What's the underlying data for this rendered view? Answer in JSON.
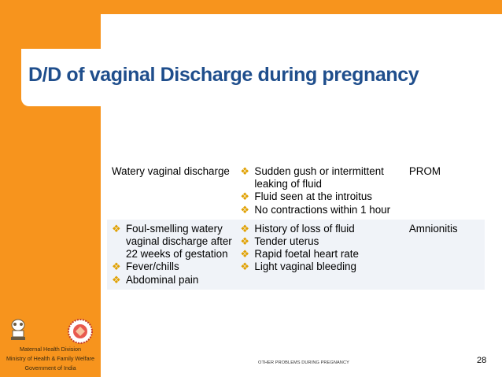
{
  "slide": {
    "title": "D/D of vaginal Discharge during pregnancy",
    "colors": {
      "accent_orange": "#f7941d",
      "title_blue": "#1f4e8c",
      "bullet": "#e0a000",
      "row_alt": "#f0f3f8"
    }
  },
  "table": {
    "rows": [
      {
        "col1_text": "Watery vaginal discharge",
        "col1_bullets": [],
        "col2_bullets": [
          "Sudden gush or intermittent leaking of fluid",
          "Fluid seen at the introitus",
          "No contractions within 1 hour"
        ],
        "diagnosis": "PROM"
      },
      {
        "col1_text": "",
        "col1_bullets": [
          "Foul-smelling watery vaginal discharge after 22 weeks of gestation",
          "Fever/chills",
          "Abdominal pain"
        ],
        "col2_bullets": [
          "History of loss of fluid",
          "Tender uterus",
          "Rapid foetal heart rate",
          "Light vaginal bleeding"
        ],
        "diagnosis": "Amnionitis"
      }
    ],
    "bullet_glyph": "❖"
  },
  "footer": {
    "org_line1": "Maternal Health Division",
    "org_line2": "Ministry of Health & Family Welfare",
    "org_line3": "Government of India",
    "section": "OTHER PROBLEMS DURING PREGNANCY",
    "page": "28"
  }
}
